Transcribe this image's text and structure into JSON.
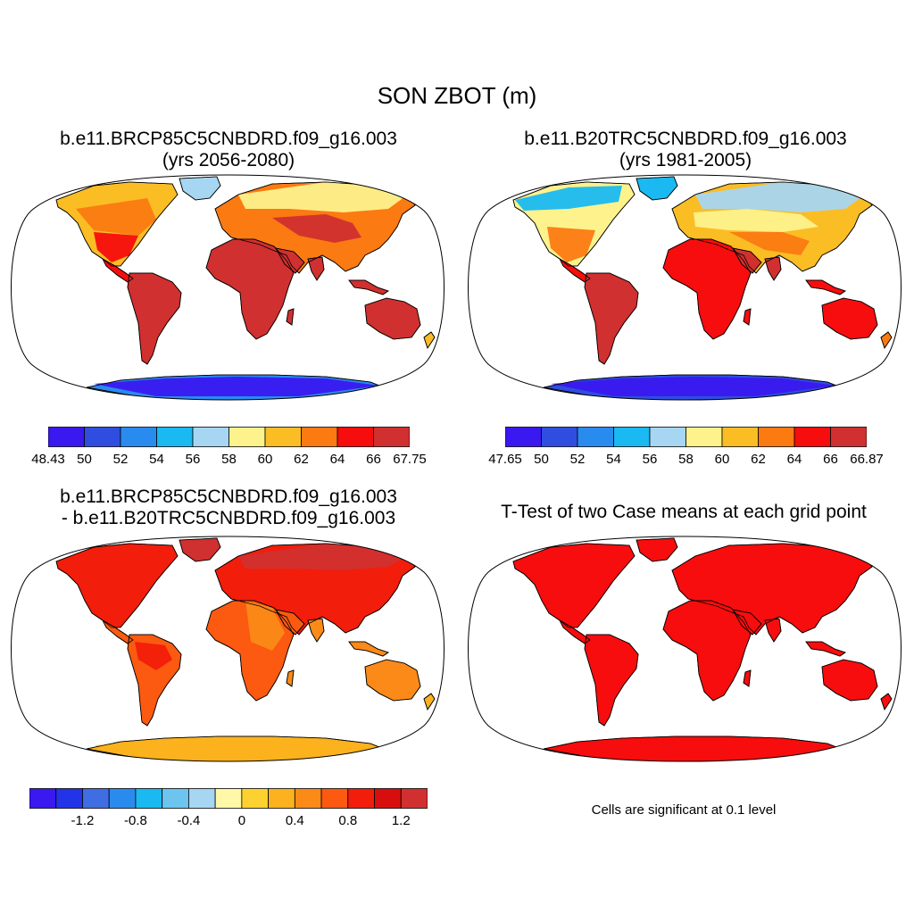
{
  "main_title": "SON ZBOT (m)",
  "panels": [
    {
      "title_line1": "b.e11.BRCP85C5CNBDRD.f09_g16.003",
      "title_line2": "(yrs 2056-2080)",
      "palette": "abs",
      "colorbar": {
        "colors": [
          "#3a18f0",
          "#2f4ee0",
          "#2a8bef",
          "#1ab9f1",
          "#a6d6f1",
          "#fdf28c",
          "#fbbd24",
          "#fb7a12",
          "#f70d0d",
          "#d0302f"
        ],
        "labels": [
          "48.43",
          "50",
          "52",
          "54",
          "56",
          "58",
          "60",
          "62",
          "64",
          "66",
          "67.75"
        ]
      }
    },
    {
      "title_line1": "b.e11.B20TRC5CNBDRD.f09_g16.003",
      "title_line2": "(yrs 1981-2005)",
      "palette": "abs",
      "colorbar": {
        "colors": [
          "#3a18f0",
          "#2f4ee0",
          "#2a8bef",
          "#1ab9f1",
          "#a6d6f1",
          "#fdf28c",
          "#fbbd24",
          "#fb7a12",
          "#f70d0d",
          "#d0302f"
        ],
        "labels": [
          "47.65",
          "50",
          "52",
          "54",
          "56",
          "58",
          "60",
          "62",
          "64",
          "66",
          "66.87"
        ]
      }
    },
    {
      "title_line1": "b.e11.BRCP85C5CNBDRD.f09_g16.003",
      "title_line2": "- b.e11.B20TRC5CNBDRD.f09_g16.003",
      "palette": "diff",
      "colorbar": {
        "colors": [
          "#3a18f0",
          "#2233e8",
          "#3f6ee2",
          "#2a8bef",
          "#1ab9f1",
          "#6cc4ef",
          "#a6d6f1",
          "#fef8a8",
          "#fdd230",
          "#fbb21e",
          "#fb8a18",
          "#fb5a10",
          "#f21d0b",
          "#d80e0e",
          "#d0302f"
        ],
        "labels": [
          "-1.2",
          "-0.8",
          "-0.4",
          "0",
          "0.4",
          "0.8",
          "1.2"
        ]
      }
    },
    {
      "title_line1": "T-Test of two Case means at each grid point",
      "palette": "ttest"
    }
  ],
  "note": "Cells are significant at 0.1 level",
  "colors": {
    "land_hot": "#d0302f",
    "significant": "#f70d0d",
    "outline": "#000000"
  }
}
